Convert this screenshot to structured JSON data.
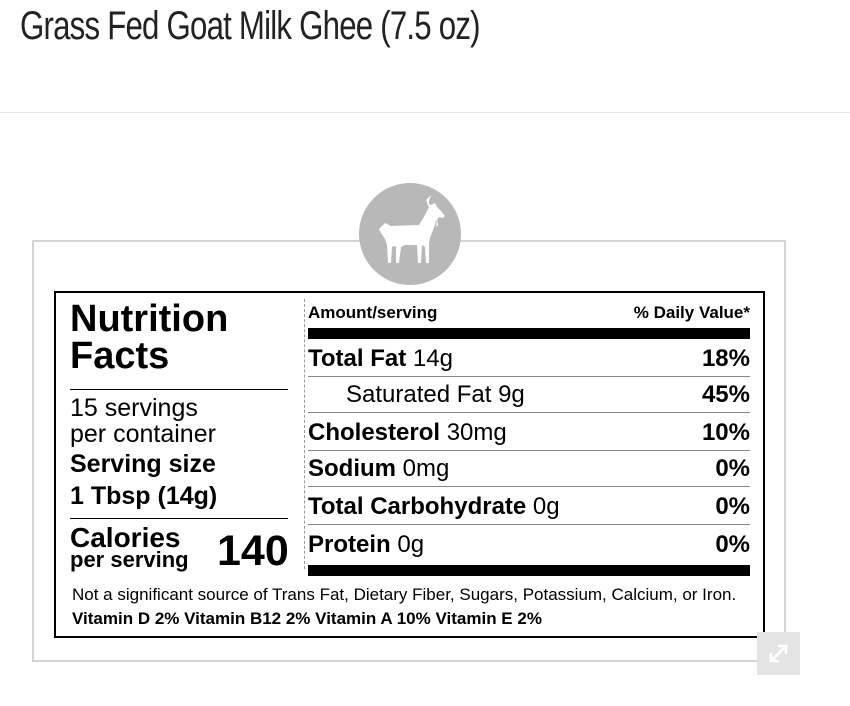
{
  "page": {
    "title": "Grass Fed Goat Milk Ghee (7.5 oz)"
  },
  "badge": {
    "icon": "goat-icon",
    "color": "#b8b8b8"
  },
  "nutrition": {
    "title_line1": "Nutrition",
    "title_line2": "Facts",
    "servings_line1": "15 servings",
    "servings_line2": "per container",
    "serving_size_label": "Serving size",
    "serving_size_value": "1 Tbsp (14g)",
    "calories_label": "Calories",
    "calories_sub": "per serving",
    "calories_value": "140",
    "header_amount": "Amount/serving",
    "header_dv": "% Daily Value*",
    "rows": [
      {
        "name": "Total Fat",
        "amount": "14g",
        "dv": "18%"
      },
      {
        "name": "Saturated Fat 9g",
        "dv": "45%"
      },
      {
        "name": "Cholesterol",
        "amount": "30mg",
        "dv": "10%"
      },
      {
        "name": "Sodium",
        "amount": "0mg",
        "dv": "0%"
      },
      {
        "name": "Total Carbohydrate",
        "amount": "0g",
        "dv": "0%"
      },
      {
        "name": "Protein",
        "amount": "0g",
        "dv": "0%"
      }
    ],
    "footnote_plain": "Not a significant source of Trans Fat, Dietary Fiber, Sugars, Potassium, Calcium, or Iron.",
    "vitamins": [
      "Vitamin D 2%",
      "Vitamin B12 2%",
      "Vitamin A 10%",
      "Vitamin E 2%"
    ]
  },
  "controls": {
    "expand_icon": "expand-icon"
  }
}
